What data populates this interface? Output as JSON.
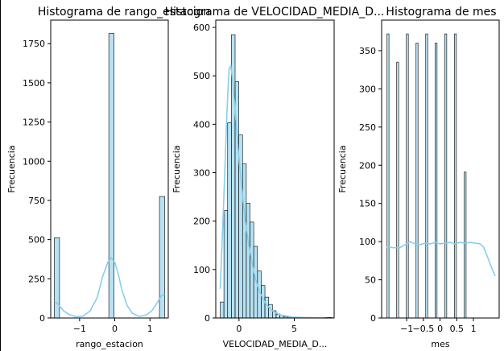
{
  "colors": {
    "bar_fill": "#87CEEB",
    "bar_edge": "#000000",
    "kde": "#87CEEB"
  },
  "chart_data": [
    {
      "type": "bar",
      "title": "Histograma de rango_estacion",
      "xlabel": "rango_estacion",
      "ylabel": "Frecuencia",
      "xlim": [
        -1.82,
        1.52
      ],
      "ylim": [
        0,
        1900
      ],
      "xticks": [
        -1,
        0,
        1
      ],
      "yticks": [
        0,
        250,
        500,
        750,
        1000,
        1250,
        1500,
        1750
      ],
      "bins": [
        {
          "x0": -1.72,
          "x1": -1.57,
          "count": 512
        },
        {
          "x0": -0.17,
          "x1": -0.02,
          "count": 1815
        },
        {
          "x0": 1.27,
          "x1": 1.42,
          "count": 775
        }
      ],
      "kde": [
        [
          -1.72,
          110
        ],
        [
          -1.6,
          85
        ],
        [
          -1.45,
          45
        ],
        [
          -1.3,
          22
        ],
        [
          -1.1,
          8
        ],
        [
          -0.9,
          12
        ],
        [
          -0.7,
          45
        ],
        [
          -0.5,
          130
        ],
        [
          -0.35,
          260
        ],
        [
          -0.2,
          355
        ],
        [
          -0.1,
          385
        ],
        [
          0.0,
          355
        ],
        [
          0.1,
          280
        ],
        [
          0.2,
          180
        ],
        [
          0.35,
          80
        ],
        [
          0.5,
          30
        ],
        [
          0.7,
          10
        ],
        [
          0.9,
          20
        ],
        [
          1.05,
          45
        ],
        [
          1.2,
          95
        ],
        [
          1.32,
          140
        ],
        [
          1.42,
          155
        ]
      ],
      "grid": false
    },
    {
      "type": "bar",
      "title": "Histograma de VELOCIDAD_MEDIA_D...",
      "xlabel": "VELOCIDAD_MEDIA_D...",
      "ylabel": "Frecuencia",
      "xlim": [
        -2.1,
        8.6
      ],
      "ylim": [
        0,
        615
      ],
      "xticks": [
        0,
        5
      ],
      "yticks": [
        0,
        100,
        200,
        300,
        400,
        500,
        600
      ],
      "bin_start": -1.7,
      "bin_width": 0.337,
      "counts": [
        33,
        222,
        403,
        585,
        488,
        378,
        318,
        237,
        198,
        148,
        97,
        67,
        43,
        28,
        15,
        8,
        6,
        3,
        2,
        1,
        1,
        1,
        0,
        0,
        1,
        0,
        0,
        0,
        1,
        1
      ],
      "kde": [
        [
          -1.7,
          60
        ],
        [
          -1.4,
          230
        ],
        [
          -1.1,
          420
        ],
        [
          -0.9,
          515
        ],
        [
          -0.75,
          520
        ],
        [
          -0.6,
          495
        ],
        [
          -0.4,
          445
        ],
        [
          -0.2,
          385
        ],
        [
          0.0,
          330
        ],
        [
          0.3,
          255
        ],
        [
          0.6,
          195
        ],
        [
          0.9,
          150
        ],
        [
          1.2,
          112
        ],
        [
          1.5,
          80
        ],
        [
          1.9,
          52
        ],
        [
          2.4,
          30
        ],
        [
          3.0,
          15
        ],
        [
          3.8,
          6
        ],
        [
          4.8,
          2
        ],
        [
          6.0,
          1
        ],
        [
          8.0,
          0
        ]
      ],
      "grid": false
    },
    {
      "type": "bar",
      "title": "Histograma de mes",
      "xlabel": "mes",
      "ylabel": "Frecuencia",
      "xlim": [
        -1.75,
        1.77
      ],
      "ylim": [
        0,
        390
      ],
      "xticks": [
        -1,
        -0.5,
        0,
        0.5,
        1
      ],
      "yticks": [
        0,
        50,
        100,
        150,
        200,
        250,
        300,
        350
      ],
      "bins": [
        {
          "x0": -1.59,
          "x1": -1.53,
          "count": 372
        },
        {
          "x0": -1.3,
          "x1": -1.24,
          "count": 335
        },
        {
          "x0": -1.01,
          "x1": -0.95,
          "count": 372
        },
        {
          "x0": -0.72,
          "x1": -0.66,
          "count": 360
        },
        {
          "x0": -0.43,
          "x1": -0.37,
          "count": 372
        },
        {
          "x0": -0.15,
          "x1": -0.09,
          "count": 360
        },
        {
          "x0": 0.14,
          "x1": 0.2,
          "count": 372
        },
        {
          "x0": 0.43,
          "x1": 0.49,
          "count": 372
        },
        {
          "x0": 0.72,
          "x1": 0.78,
          "count": 191
        },
        {
          "x0": 1.01,
          "x1": 1.07,
          "count": 0
        },
        {
          "x0": 1.3,
          "x1": 1.36,
          "count": 0
        },
        {
          "x0": 1.59,
          "x1": 1.65,
          "count": 0
        }
      ],
      "kde": [
        [
          -1.6,
          93
        ],
        [
          -1.4,
          92
        ],
        [
          -1.2,
          92
        ],
        [
          -1.05,
          96
        ],
        [
          -0.9,
          100
        ],
        [
          -0.75,
          97
        ],
        [
          -0.6,
          96
        ],
        [
          -0.45,
          98
        ],
        [
          -0.3,
          97
        ],
        [
          -0.15,
          99
        ],
        [
          0.0,
          97
        ],
        [
          0.15,
          98
        ],
        [
          0.3,
          99
        ],
        [
          0.45,
          97
        ],
        [
          0.6,
          99
        ],
        [
          0.75,
          98
        ],
        [
          0.9,
          99
        ],
        [
          1.05,
          98
        ],
        [
          1.2,
          97
        ],
        [
          1.3,
          93
        ],
        [
          1.42,
          80
        ],
        [
          1.55,
          65
        ],
        [
          1.65,
          55
        ]
      ],
      "grid": false
    }
  ]
}
